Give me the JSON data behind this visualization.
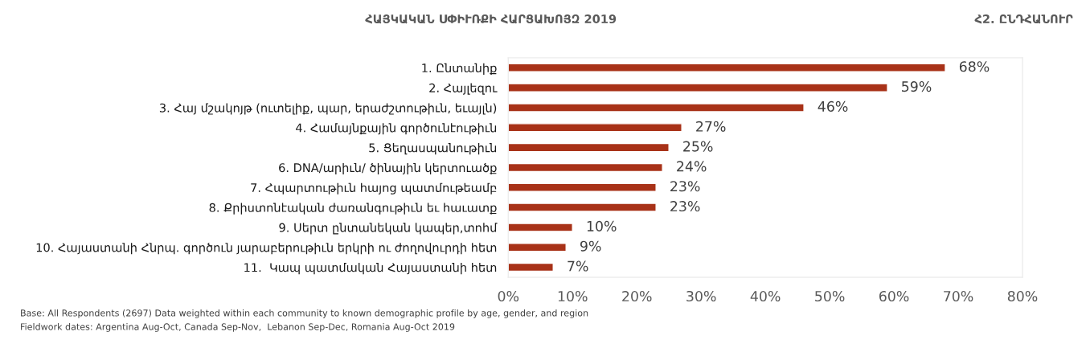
{
  "chart_data": {
    "type": "bar",
    "orientation": "horizontal",
    "title": "ՀԱՅԿԱԿԱՆ ՍՓԻՒՌՔԻ ՀԱՐՑԱԽՈՅԶ 2019",
    "subtitle": "Հ2. ԸՆԴՀԱՆՈՒՐ",
    "categories": [
      "1. Ընտանիք",
      "2. Հայլեզու",
      "3. Հայ մշակոյթ (ուտելիք, պար, երաժշտութիւն, եւայլն)",
      "4. Համայնքային գործունէութիւն",
      "5. Ցեղասպանութիւն",
      "6. DNA/արիւն/ ծինային կերտուածք",
      "7. Հպարտութիւն հայոց պատմութեամբ",
      "8. Քրիստոնէական ժառանգութիւն եւ հաւատք",
      "9. Սերտ ընտանեկան կապեր,տոհմ",
      "10. Հայաստանի Հնրպ. գործուն յարաբերութիւն երկրի ու ժողովուրդի հետ",
      "11.  Կապ պատմական Հայաստանի հետ"
    ],
    "values": [
      68,
      59,
      46,
      27,
      25,
      24,
      23,
      23,
      10,
      9,
      7
    ],
    "value_labels": [
      "68%",
      "59%",
      "46%",
      "27%",
      "25%",
      "24%",
      "23%",
      "23%",
      "10%",
      "9%",
      "7%"
    ],
    "color": "#a83218",
    "xlim": [
      0,
      80
    ],
    "xticks": [
      {
        "value": 0,
        "label": "0%"
      },
      {
        "value": 10,
        "label": "10%"
      },
      {
        "value": 20,
        "label": "20%"
      },
      {
        "value": 30,
        "label": "30%"
      },
      {
        "value": 40,
        "label": "40%"
      },
      {
        "value": 50,
        "label": "50%"
      },
      {
        "value": 60,
        "label": "60%"
      },
      {
        "value": 70,
        "label": "70%"
      },
      {
        "value": 80,
        "label": "80%"
      }
    ],
    "annotations": [
      "Base: All Respondents (2697) Data weighted within each community to known demographic profile by age, gender, and region",
      "Fieldwork dates: Argentina Aug-Oct, Canada Sep-Nov,  Lebanon Sep-Dec, Romania Aug-Oct 2019"
    ]
  }
}
